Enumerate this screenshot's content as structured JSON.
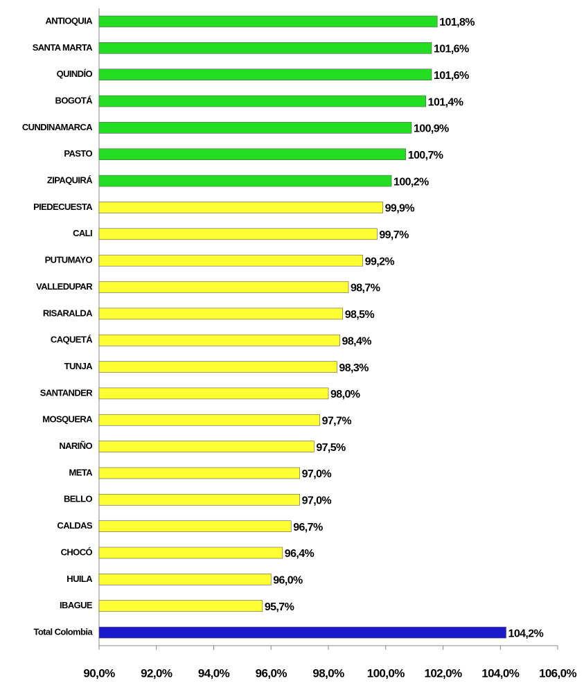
{
  "chart_data": {
    "type": "bar",
    "orientation": "horizontal",
    "categories": [
      "ANTIOQUIA",
      "SANTA MARTA",
      "QUINDÍO",
      "BOGOTÁ",
      "CUNDINAMARCA",
      "PASTO",
      "ZIPAQUIRÁ",
      "PIEDECUESTA",
      "CALI",
      "PUTUMAYO",
      "VALLEDUPAR",
      "RISARALDA",
      "CAQUETÁ",
      "TUNJA",
      "SANTANDER",
      "MOSQUERA",
      "NARIÑO",
      "META",
      "BELLO",
      "CALDAS",
      "CHOCÓ",
      "HUILA",
      "IBAGUE",
      "Total Colombia"
    ],
    "values": [
      101.8,
      101.6,
      101.6,
      101.4,
      100.9,
      100.7,
      100.2,
      99.9,
      99.7,
      99.2,
      98.7,
      98.5,
      98.4,
      98.3,
      98.0,
      97.7,
      97.5,
      97.0,
      97.0,
      96.7,
      96.4,
      96.0,
      95.7,
      104.2
    ],
    "value_labels": [
      "101,8%",
      "101,6%",
      "101,6%",
      "101,4%",
      "100,9%",
      "100,7%",
      "100,2%",
      "99,9%",
      "99,7%",
      "99,2%",
      "98,7%",
      "98,5%",
      "98,4%",
      "98,3%",
      "98,0%",
      "97,7%",
      "97,5%",
      "97,0%",
      "97,0%",
      "96,7%",
      "96,4%",
      "96,0%",
      "95,7%",
      "104,2%"
    ],
    "colors": [
      "#22dd22",
      "#22dd22",
      "#22dd22",
      "#22dd22",
      "#22dd22",
      "#22dd22",
      "#22dd22",
      "#ffff33",
      "#ffff33",
      "#ffff33",
      "#ffff33",
      "#ffff33",
      "#ffff33",
      "#ffff33",
      "#ffff33",
      "#ffff33",
      "#ffff33",
      "#ffff33",
      "#ffff33",
      "#ffff33",
      "#ffff33",
      "#ffff33",
      "#ffff33",
      "#1a1acc"
    ],
    "xlim": [
      90,
      106
    ],
    "xticks": [
      {
        "value": 90,
        "label": "90,0%"
      },
      {
        "value": 92,
        "label": "92,0%"
      },
      {
        "value": 94,
        "label": "94,0%"
      },
      {
        "value": 96,
        "label": "96,0%"
      },
      {
        "value": 98,
        "label": "98,0%"
      },
      {
        "value": 100,
        "label": "100,0%"
      },
      {
        "value": 102,
        "label": "102,0%"
      },
      {
        "value": 104,
        "label": "104,0%"
      },
      {
        "value": 106,
        "label": "106,0%"
      }
    ]
  }
}
